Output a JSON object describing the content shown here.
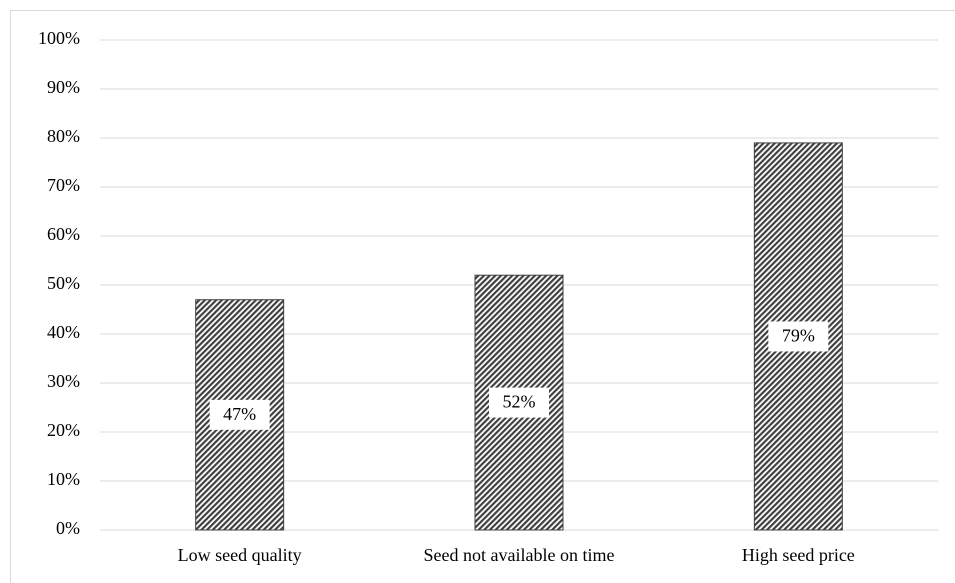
{
  "chart_data": {
    "type": "bar",
    "categories": [
      "Low seed quality",
      "Seed not available on time",
      "High seed price"
    ],
    "values": [
      47,
      52,
      79
    ],
    "value_labels": [
      "47%",
      "52%",
      "79%"
    ],
    "color": "#404040",
    "ylim": [
      0,
      100
    ],
    "yticks": [
      {
        "value": 0,
        "label": "0%"
      },
      {
        "value": 10,
        "label": "10%"
      },
      {
        "value": 20,
        "label": "20%"
      },
      {
        "value": 30,
        "label": "30%"
      },
      {
        "value": 40,
        "label": "40%"
      },
      {
        "value": 50,
        "label": "50%"
      },
      {
        "value": 60,
        "label": "60%"
      },
      {
        "value": 70,
        "label": "70%"
      },
      {
        "value": 80,
        "label": "80%"
      },
      {
        "value": 90,
        "label": "90%"
      },
      {
        "value": 100,
        "label": "100%"
      }
    ],
    "grid": true
  }
}
